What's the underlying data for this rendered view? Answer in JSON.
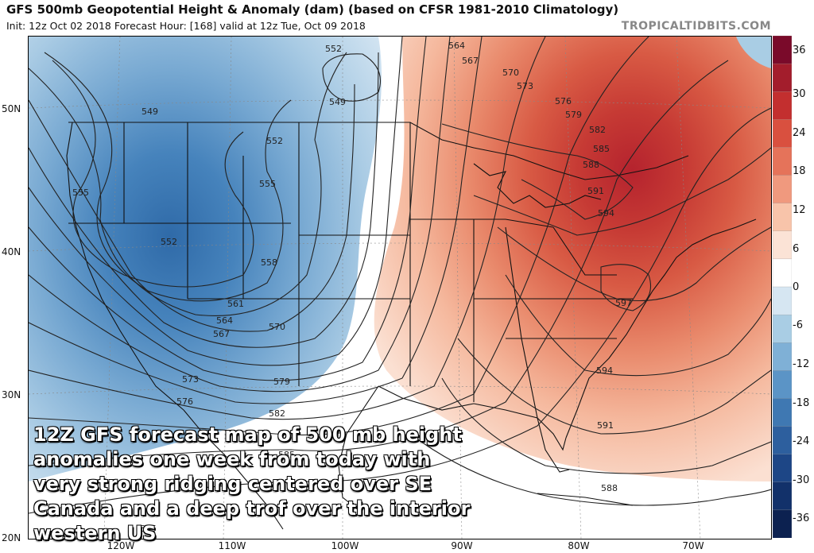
{
  "header": {
    "title": "GFS 500mb Geopotential Height & Anomaly (dam) (based on CFSR 1981-2010 Climatology)",
    "subtitle": "Init: 12z Oct 02 2018   Forecast Hour: [168]   valid at 12z Tue, Oct 09 2018",
    "brand": "TROPICALTIDBITS.COM"
  },
  "axes": {
    "lat_labels": [
      "50N",
      "40N",
      "30N",
      "20N"
    ],
    "lon_labels": [
      "120W",
      "110W",
      "100W",
      "90W",
      "80W",
      "70W"
    ]
  },
  "colorbar": {
    "labels": [
      "36",
      "30",
      "24",
      "18",
      "12",
      "6",
      "0",
      "-6",
      "-12",
      "-18",
      "-24",
      "-30",
      "-36"
    ],
    "colors": [
      "#7a0a2a",
      "#a31d2c",
      "#c32f2f",
      "#d9503f",
      "#e5735a",
      "#f0997e",
      "#f8c4aa",
      "#fbe3d6",
      "#ffffff",
      "#d6e6f2",
      "#a9cde4",
      "#7fb0d6",
      "#5b94c6",
      "#3f78b2",
      "#2d5f9e",
      "#1d4686",
      "#12316a",
      "#0c2150"
    ]
  },
  "height_contours": [
    "549",
    "552",
    "555",
    "558",
    "561",
    "564",
    "567",
    "570",
    "573",
    "576",
    "579",
    "582",
    "585",
    "588",
    "591",
    "594",
    "597"
  ],
  "annotation": "12Z GFS forecast map of 500 mb height anomalies one week from today with very strong ridging centered over SE Canada and a deep trof over the interior western US"
}
